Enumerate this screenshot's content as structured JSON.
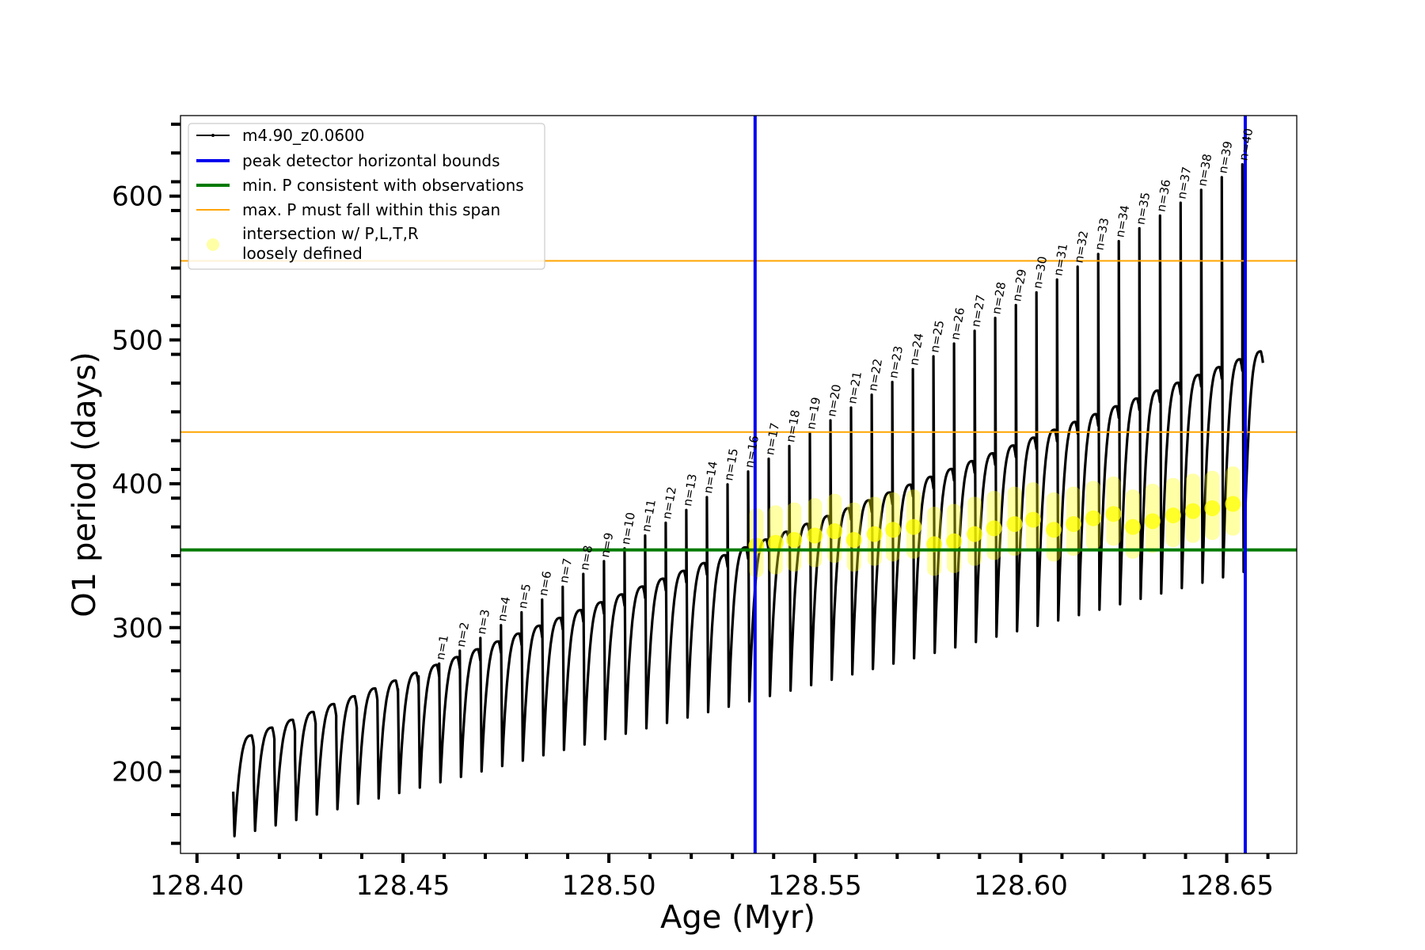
{
  "chart_data": {
    "type": "line",
    "xlabel": "Age (Myr)",
    "ylabel": "O1 period (days)",
    "xlim": [
      128.396,
      128.667
    ],
    "ylim": [
      143,
      656
    ],
    "x_ticks": [
      128.4,
      128.45,
      128.5,
      128.55,
      128.6,
      128.65
    ],
    "x_tick_labels": [
      "128.40",
      "128.45",
      "128.50",
      "128.55",
      "128.60",
      "128.65"
    ],
    "y_ticks": [
      200,
      300,
      400,
      500,
      600
    ],
    "y_tick_labels": [
      "200",
      "300",
      "400",
      "500",
      "600"
    ],
    "grid": false,
    "legend_position": "upper-left",
    "colors": {
      "track": "#000000",
      "bounds": "#0000ee",
      "min_p": "#007a00",
      "max_p": "#ffa500",
      "intersection": "#ffff00"
    },
    "series": [
      {
        "name": "m4.90_z0.0600",
        "kind": "line",
        "start_age": 128.4088,
        "cycle_length": 0.005,
        "cycle_count": 50,
        "first_cycle": {
          "min": 155,
          "peak": 186,
          "plateau": 225
        },
        "min_slope_per_cycle": 3.75,
        "peak_slope_per_cycle": 8.9,
        "plateau_slope_per_cycle": 5.45
      },
      {
        "name": "peak detector horizontal bounds",
        "kind": "vline",
        "x": [
          128.5355,
          128.6545
        ]
      },
      {
        "name": "min. P consistent with observations",
        "kind": "hline",
        "y": [
          354
        ]
      },
      {
        "name": "max. P must fall within this span",
        "kind": "hline",
        "y": [
          436,
          555
        ]
      },
      {
        "name": "intersection w/ P,L,T,R",
        "name_line2": "loosely defined",
        "kind": "scatter",
        "x": [
          128.5358,
          128.5405,
          128.545,
          128.55,
          128.5548,
          128.5595,
          128.5645,
          128.569,
          128.574,
          128.579,
          128.5838,
          128.5888,
          128.5935,
          128.5985,
          128.603,
          128.608,
          128.6128,
          128.6176,
          128.6225,
          128.6272,
          128.632,
          128.637,
          128.6418,
          128.6465,
          128.6515
        ],
        "y": [
          357,
          359,
          361,
          364,
          367,
          361,
          365,
          368,
          370,
          358,
          360,
          365,
          369,
          372,
          375,
          368,
          372,
          376,
          379,
          370,
          374,
          378,
          381,
          383,
          386
        ]
      }
    ],
    "cycle_labels": [
      "n=1",
      "n=2",
      "n=3",
      "n=4",
      "n=5",
      "n=6",
      "n=7",
      "n=8",
      "n=9",
      "n=10",
      "n=11",
      "n=12",
      "n=13",
      "n=14",
      "n=15",
      "n=16",
      "n=17",
      "n=18",
      "n=19",
      "n=20",
      "n=21",
      "n=22",
      "n=23",
      "n=24",
      "n=25",
      "n=26",
      "n=27",
      "n=28",
      "n=29",
      "n=30",
      "n=31",
      "n=32",
      "n=33",
      "n=34",
      "n=35",
      "n=36",
      "n=37",
      "n=38",
      "n=39",
      "n=40"
    ],
    "first_labelled_cycle": 10
  }
}
